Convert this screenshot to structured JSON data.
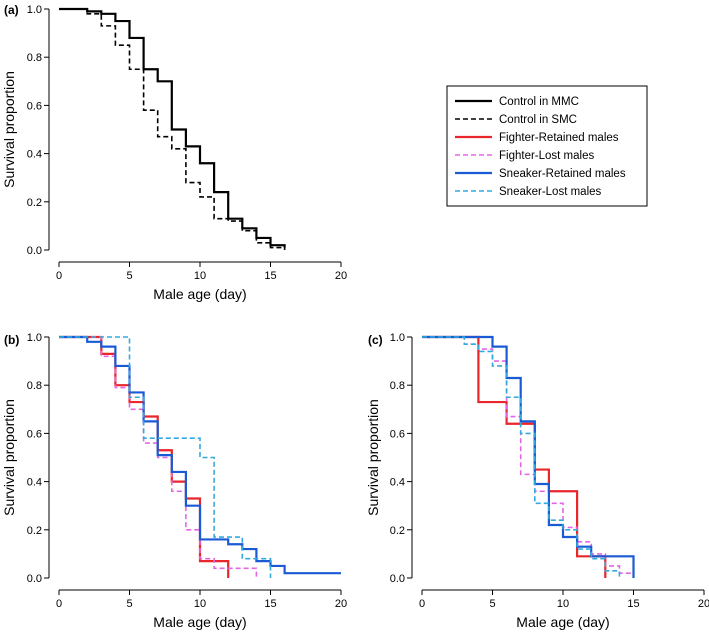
{
  "chart_data": [
    {
      "type": "line",
      "step": true,
      "panel_label": "(a)",
      "xlabel": "Male age (day)",
      "ylabel": "Survival proportion",
      "xlim": [
        0,
        20
      ],
      "ylim": [
        0,
        1.0
      ],
      "xticks": [
        "0",
        "5",
        "10",
        "15",
        "20"
      ],
      "yticks": [
        "0.0",
        "0.2",
        "0.4",
        "0.6",
        "0.8",
        "1.0"
      ],
      "series": [
        {
          "name": "Control in MMC",
          "color": "#000000",
          "dash": "solid",
          "x": [
            0,
            2,
            3,
            4,
            5,
            6,
            7,
            8,
            9,
            10,
            11,
            12,
            13,
            14,
            15,
            16
          ],
          "y": [
            1.0,
            0.99,
            0.98,
            0.95,
            0.88,
            0.75,
            0.7,
            0.5,
            0.43,
            0.36,
            0.24,
            0.13,
            0.09,
            0.05,
            0.02,
            0.01
          ]
        },
        {
          "name": "Control in SMC",
          "color": "#000000",
          "dash": "dashed",
          "x": [
            0,
            2,
            3,
            4,
            5,
            6,
            7,
            8,
            9,
            10,
            11,
            12,
            13,
            14,
            15,
            16
          ],
          "y": [
            1.0,
            0.98,
            0.93,
            0.85,
            0.75,
            0.58,
            0.47,
            0.42,
            0.28,
            0.22,
            0.13,
            0.12,
            0.08,
            0.03,
            0.01,
            0.0
          ]
        }
      ]
    },
    {
      "type": "line",
      "step": true,
      "panel_label": "(b)",
      "xlabel": "Male age (day)",
      "ylabel": "Survival proportion",
      "xlim": [
        0,
        20
      ],
      "ylim": [
        0,
        1.0
      ],
      "xticks": [
        "0",
        "5",
        "10",
        "15",
        "20"
      ],
      "yticks": [
        "0.0",
        "0.2",
        "0.4",
        "0.6",
        "0.8",
        "1.0"
      ],
      "series": [
        {
          "name": "Fighter-Retained males",
          "color": "#e8262b",
          "dash": "solid",
          "x": [
            0,
            3,
            4,
            5,
            6,
            7,
            8,
            9,
            10,
            11,
            12
          ],
          "y": [
            1.0,
            0.93,
            0.8,
            0.73,
            0.67,
            0.53,
            0.4,
            0.33,
            0.07,
            0.07,
            0.0
          ]
        },
        {
          "name": "Fighter-Lost males",
          "color": "#e566e5",
          "dash": "dashed",
          "x": [
            0,
            3,
            4,
            5,
            6,
            7,
            8,
            9,
            10,
            11,
            12,
            13,
            14
          ],
          "y": [
            1.0,
            0.92,
            0.79,
            0.7,
            0.56,
            0.5,
            0.36,
            0.2,
            0.08,
            0.04,
            0.04,
            0.04,
            0.0
          ]
        },
        {
          "name": "Sneaker-Retained males",
          "color": "#1a5ad4",
          "dash": "solid",
          "x": [
            0,
            2,
            3,
            4,
            5,
            6,
            7,
            8,
            9,
            10,
            11,
            12,
            13,
            14,
            15,
            16,
            20
          ],
          "y": [
            1.0,
            0.98,
            0.96,
            0.88,
            0.77,
            0.65,
            0.51,
            0.44,
            0.3,
            0.16,
            0.16,
            0.14,
            0.12,
            0.07,
            0.05,
            0.02,
            0.02
          ]
        },
        {
          "name": "Sneaker-Lost males",
          "color": "#33aadd",
          "dash": "dashed",
          "x": [
            0,
            5,
            6,
            7,
            10,
            11,
            12,
            13,
            14,
            15
          ],
          "y": [
            1.0,
            0.75,
            0.58,
            0.58,
            0.5,
            0.17,
            0.17,
            0.08,
            0.08,
            0.0
          ]
        }
      ]
    },
    {
      "type": "line",
      "step": true,
      "panel_label": "(c)",
      "xlabel": "Male age (day)",
      "ylabel": "Survival proportion",
      "xlim": [
        0,
        20
      ],
      "ylim": [
        0,
        1.0
      ],
      "xticks": [
        "0",
        "5",
        "10",
        "15",
        "20"
      ],
      "yticks": [
        "0.0",
        "0.2",
        "0.4",
        "0.6",
        "0.8",
        "1.0"
      ],
      "series": [
        {
          "name": "Fighter-Retained males",
          "color": "#e8262b",
          "dash": "solid",
          "x": [
            0,
            4,
            5,
            6,
            7,
            8,
            9,
            10,
            11,
            12,
            13
          ],
          "y": [
            1.0,
            0.73,
            0.73,
            0.64,
            0.64,
            0.45,
            0.36,
            0.36,
            0.09,
            0.09,
            0.0
          ]
        },
        {
          "name": "Fighter-Lost males",
          "color": "#e566e5",
          "dash": "dashed",
          "x": [
            0,
            3,
            4,
            5,
            6,
            7,
            8,
            9,
            10,
            11,
            12,
            13,
            14,
            15
          ],
          "y": [
            1.0,
            0.97,
            0.95,
            0.9,
            0.67,
            0.43,
            0.36,
            0.31,
            0.21,
            0.15,
            0.1,
            0.05,
            0.02,
            0.0
          ]
        },
        {
          "name": "Sneaker-Retained males",
          "color": "#1a5ad4",
          "dash": "solid",
          "x": [
            0,
            5,
            6,
            7,
            8,
            9,
            10,
            11,
            12,
            15
          ],
          "y": [
            1.0,
            0.96,
            0.83,
            0.65,
            0.39,
            0.22,
            0.17,
            0.13,
            0.09,
            0.0
          ]
        },
        {
          "name": "Sneaker-Lost males",
          "color": "#33aadd",
          "dash": "dashed",
          "x": [
            0,
            3,
            4,
            5,
            6,
            7,
            8,
            9,
            10,
            11,
            12,
            13,
            14
          ],
          "y": [
            1.0,
            0.97,
            0.94,
            0.88,
            0.75,
            0.6,
            0.31,
            0.24,
            0.2,
            0.12,
            0.08,
            0.03,
            0.0
          ]
        }
      ]
    }
  ],
  "legend": {
    "position": "right of panel (a)",
    "entries": [
      {
        "label": "Control in MMC",
        "color": "#000000",
        "dash": "solid"
      },
      {
        "label": "Control in SMC",
        "color": "#000000",
        "dash": "dashed"
      },
      {
        "label": "Fighter-Retained males",
        "color": "#e8262b",
        "dash": "solid"
      },
      {
        "label": "Fighter-Lost males",
        "color": "#e566e5",
        "dash": "dashed"
      },
      {
        "label": "Sneaker-Retained males",
        "color": "#1a5ad4",
        "dash": "solid"
      },
      {
        "label": "Sneaker-Lost males",
        "color": "#33aadd",
        "dash": "dashed"
      }
    ]
  }
}
